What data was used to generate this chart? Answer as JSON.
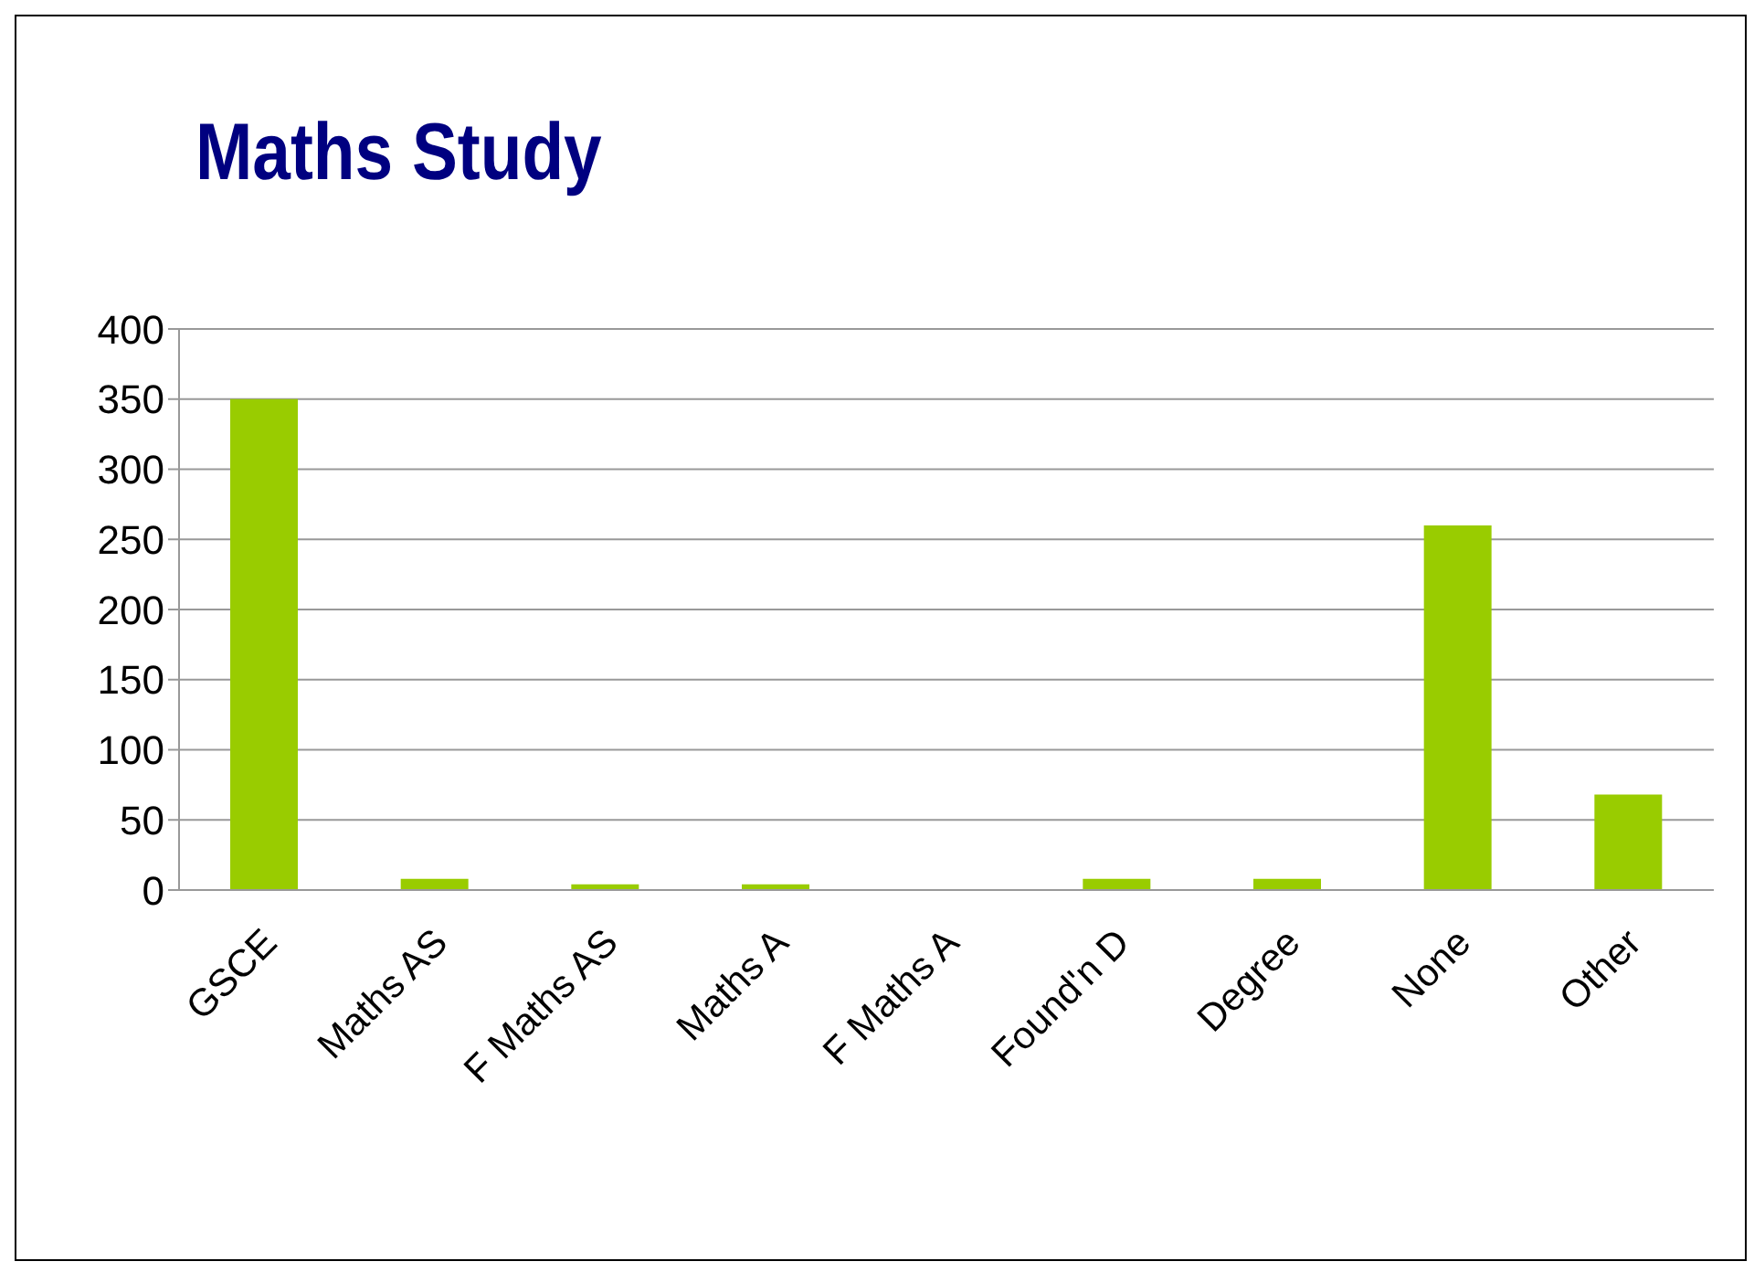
{
  "chart_data": {
    "type": "bar",
    "title": "Maths Study",
    "categories": [
      "GSCE",
      "Maths AS",
      "F Maths AS",
      "Maths A",
      "F Maths A",
      "Found'n D",
      "Degree",
      "None",
      "Other"
    ],
    "values": [
      350,
      8,
      4,
      4,
      0,
      8,
      8,
      260,
      68
    ],
    "color": "#99cc00",
    "ylim": [
      0,
      400
    ],
    "yticks": [
      0,
      50,
      100,
      150,
      200,
      250,
      300,
      350,
      400
    ],
    "grid": "y",
    "legend": false
  }
}
